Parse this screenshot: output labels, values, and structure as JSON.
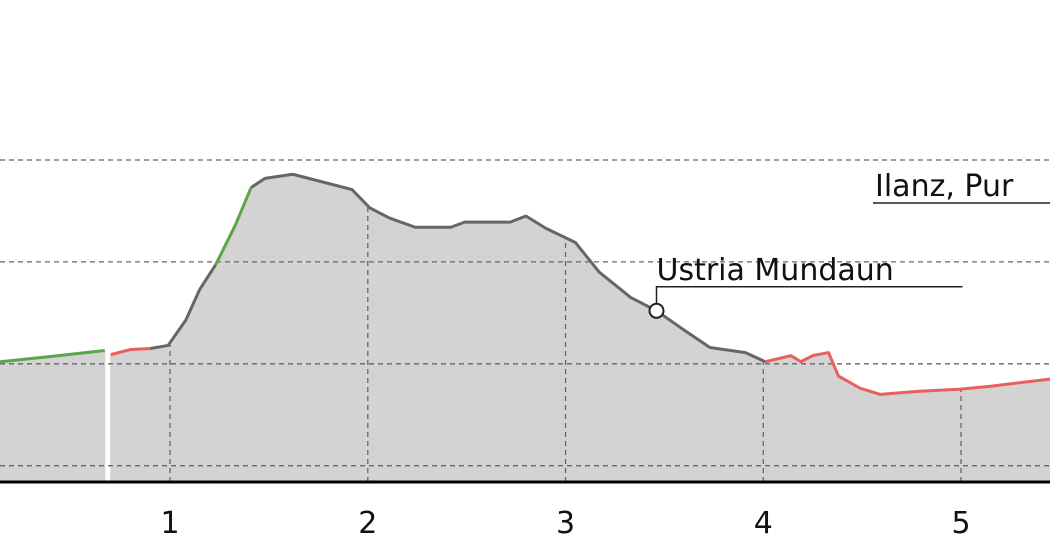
{
  "chart_data": {
    "type": "area",
    "xlim": [
      0.14,
      5.45
    ],
    "ylim": [
      -0.16,
      4.57
    ],
    "xticks": [
      1,
      2,
      3,
      4,
      5
    ],
    "ygrid": [
      0,
      1,
      2,
      3
    ],
    "grid": true,
    "fill": "#d3d3d3",
    "series": [
      {
        "color": "#5aa64a",
        "x": [
          0.14,
          0.39,
          0.67
        ],
        "values": [
          1.02,
          1.07,
          1.13
        ]
      },
      {
        "color": "#e8605c",
        "x": [
          0.7,
          0.8,
          0.9
        ],
        "values": [
          1.09,
          1.14,
          1.15
        ]
      },
      {
        "color": "#666666",
        "x": [
          0.9,
          0.99,
          1.08,
          1.15,
          1.23
        ],
        "values": [
          1.15,
          1.18,
          1.43,
          1.73,
          1.97
        ]
      },
      {
        "color": "#5aa64a",
        "x": [
          1.23,
          1.33,
          1.41
        ],
        "values": [
          1.97,
          2.36,
          2.73
        ]
      },
      {
        "color": "#666666",
        "x": [
          1.41,
          1.48,
          1.62,
          1.76,
          1.92,
          2.01,
          2.11,
          2.24,
          2.42,
          2.49,
          2.72,
          2.8,
          2.9,
          3.05,
          3.17,
          3.33,
          3.46,
          3.6,
          3.73,
          3.91,
          4.01
        ],
        "values": [
          2.73,
          2.82,
          2.86,
          2.79,
          2.71,
          2.53,
          2.43,
          2.34,
          2.34,
          2.39,
          2.39,
          2.45,
          2.33,
          2.19,
          1.9,
          1.65,
          1.52,
          1.33,
          1.16,
          1.11,
          1.02
        ]
      },
      {
        "color": "#e8605c",
        "x": [
          4.01,
          4.14,
          4.19,
          4.25,
          4.33,
          4.38,
          4.49,
          4.59,
          4.79,
          4.99,
          5.15,
          5.45
        ],
        "values": [
          1.02,
          1.08,
          1.02,
          1.08,
          1.11,
          0.88,
          0.76,
          0.7,
          0.73,
          0.75,
          0.78,
          0.85
        ]
      }
    ],
    "markers": [
      {
        "label": "Ustria Mundaun",
        "x": 3.46,
        "y": 1.52
      }
    ],
    "annotations": [
      "Ilanz, Pur"
    ]
  }
}
